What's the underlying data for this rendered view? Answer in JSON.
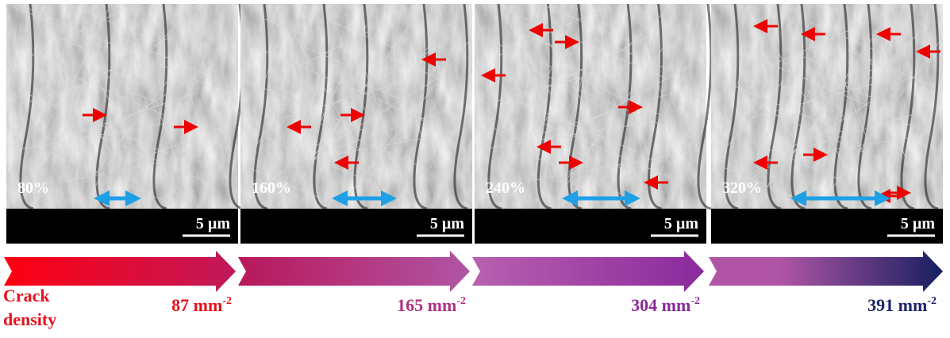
{
  "panels": [
    {
      "strain": "80%",
      "scale": "5 µm",
      "density": "87 mm",
      "density_exp": "-2"
    },
    {
      "strain": "160%",
      "scale": "5 µm",
      "density": "165 mm",
      "density_exp": "-2"
    },
    {
      "strain": "240%",
      "scale": "5 µm",
      "density": "304 mm",
      "density_exp": "-2"
    },
    {
      "strain": "320%",
      "scale": "5 µm",
      "density": "391 mm",
      "density_exp": "-2"
    }
  ],
  "axis_label": {
    "line1": "Crack",
    "line2": "density"
  }
}
